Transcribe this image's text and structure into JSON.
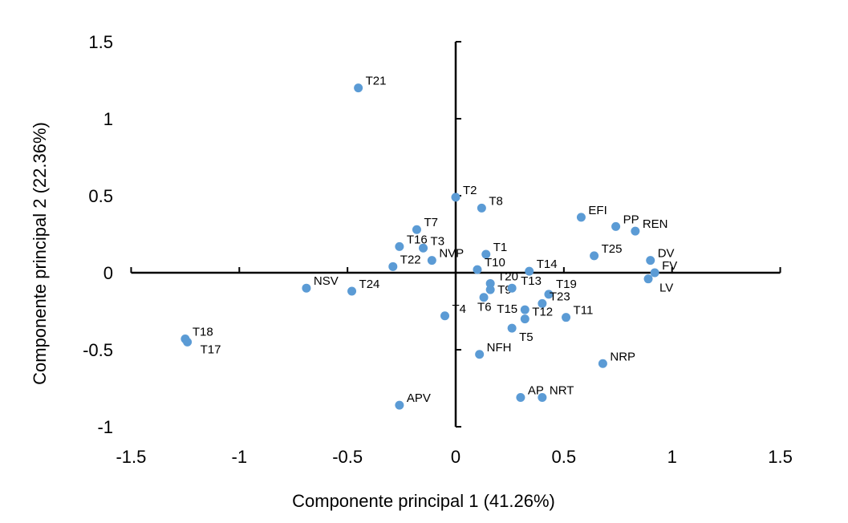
{
  "chart_data": {
    "type": "scatter",
    "title": "",
    "xlabel": "Componente principal 1 (41.26%)",
    "ylabel": "Componente principal 2 (22.36%)",
    "xlim": [
      -1.5,
      1.5
    ],
    "ylim": [
      -1,
      1.5
    ],
    "xticks": [
      -1.5,
      -1,
      -0.5,
      0,
      0.5,
      1,
      1.5
    ],
    "yticks": [
      -1,
      -0.5,
      0,
      0.5,
      1,
      1.5
    ],
    "xtick_labels": [
      "-1.5",
      "-1",
      "-0.5",
      "0",
      "0.5",
      "1",
      "1.5"
    ],
    "ytick_labels": [
      "-1",
      "-0.5",
      "0",
      "0.5",
      "1",
      "1.5"
    ],
    "grid": false,
    "marker_color": "#5B9BD5",
    "points": [
      {
        "label": "T21",
        "x": -0.45,
        "y": 1.2
      },
      {
        "label": "T2",
        "x": 0.0,
        "y": 0.49
      },
      {
        "label": "T8",
        "x": 0.12,
        "y": 0.42
      },
      {
        "label": "EFI",
        "x": 0.58,
        "y": 0.36
      },
      {
        "label": "PP",
        "x": 0.74,
        "y": 0.3
      },
      {
        "label": "REN",
        "x": 0.83,
        "y": 0.27
      },
      {
        "label": "T7",
        "x": -0.18,
        "y": 0.28
      },
      {
        "label": "T16",
        "x": -0.26,
        "y": 0.17
      },
      {
        "label": "T3",
        "x": -0.15,
        "y": 0.16
      },
      {
        "label": "T1",
        "x": 0.14,
        "y": 0.12
      },
      {
        "label": "T25",
        "x": 0.64,
        "y": 0.11
      },
      {
        "label": "T22",
        "x": -0.29,
        "y": 0.04
      },
      {
        "label": "NVP",
        "x": -0.11,
        "y": 0.08
      },
      {
        "label": "DV",
        "x": 0.9,
        "y": 0.08
      },
      {
        "label": "FV",
        "x": 0.92,
        "y": 0.0
      },
      {
        "label": "LV",
        "x": 0.89,
        "y": -0.04
      },
      {
        "label": "T10",
        "x": 0.1,
        "y": 0.02
      },
      {
        "label": "T14",
        "x": 0.34,
        "y": 0.01
      },
      {
        "label": "NSV",
        "x": -0.69,
        "y": -0.1
      },
      {
        "label": "T24",
        "x": -0.48,
        "y": -0.12
      },
      {
        "label": "T20",
        "x": 0.16,
        "y": -0.07
      },
      {
        "label": "T9",
        "x": 0.16,
        "y": -0.11
      },
      {
        "label": "T6",
        "x": 0.13,
        "y": -0.16
      },
      {
        "label": "T13",
        "x": 0.26,
        "y": -0.1
      },
      {
        "label": "T19",
        "x": 0.43,
        "y": -0.14
      },
      {
        "label": "T23",
        "x": 0.4,
        "y": -0.2
      },
      {
        "label": "T15",
        "x": 0.32,
        "y": -0.24
      },
      {
        "label": "T12",
        "x": 0.32,
        "y": -0.3
      },
      {
        "label": "T11",
        "x": 0.51,
        "y": -0.29
      },
      {
        "label": "T5",
        "x": 0.26,
        "y": -0.36
      },
      {
        "label": "T4",
        "x": -0.05,
        "y": -0.28
      },
      {
        "label": "T18",
        "x": -1.25,
        "y": -0.43
      },
      {
        "label": "T17",
        "x": -1.24,
        "y": -0.45
      },
      {
        "label": "NFH",
        "x": 0.11,
        "y": -0.53
      },
      {
        "label": "NRP",
        "x": 0.68,
        "y": -0.59
      },
      {
        "label": "AP",
        "x": 0.3,
        "y": -0.81
      },
      {
        "label": "NRT",
        "x": 0.4,
        "y": -0.81
      },
      {
        "label": "APV",
        "x": -0.26,
        "y": -0.86
      }
    ]
  }
}
